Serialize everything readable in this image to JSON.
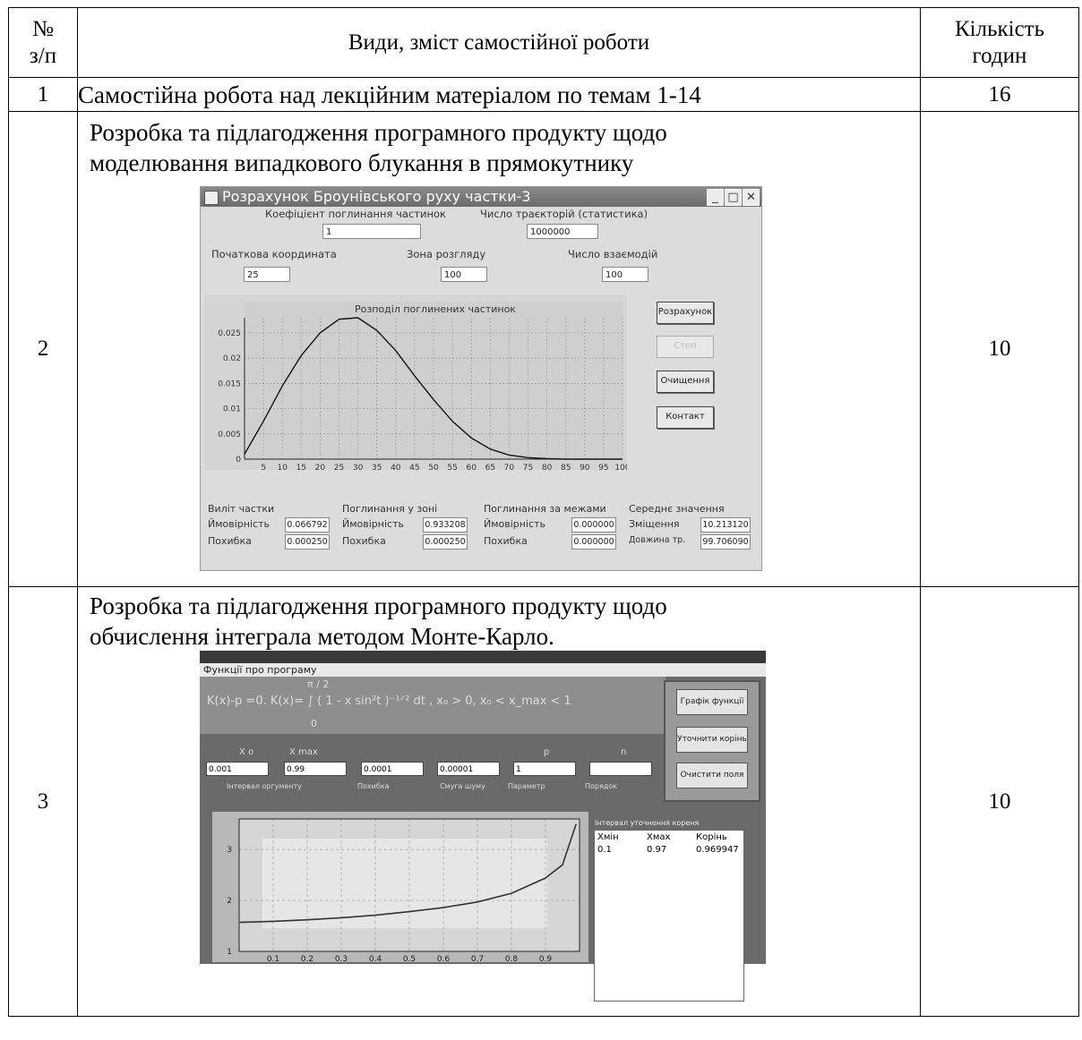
{
  "header": {
    "num_line1": "№",
    "num_line2": "з/п",
    "title": "Види, зміст самостійної роботи",
    "hours_line1": "Кількість",
    "hours_line2": "годин"
  },
  "rows": [
    {
      "num": "1",
      "text": "Самостійна робота над лекційним матеріалом по темам 1-14",
      "hours": "16"
    },
    {
      "num": "2",
      "text_line1": "Розробка та підлагодження програмного продукту щодо",
      "text_line2": "моделювання випадкового блукання в прямокутнику",
      "hours": "10"
    },
    {
      "num": "3",
      "text_line1": "Розробка та підлагодження програмного продукту щодо",
      "text_line2": "обчислення інтеграла методом Монте-Карло.",
      "hours": "10"
    }
  ],
  "screenshot1": {
    "title": "Розрахунок Броунівського руху частки-3",
    "lbl_absorb": "Коефіцієнт поглинання частинок",
    "val_absorb": "1",
    "lbl_traj": "Число траєкторій (статистика)",
    "val_traj": "1000000",
    "lbl_start": "Початкова координата",
    "val_start": "25",
    "lbl_zone": "Зона розгляду",
    "val_zone": "100",
    "lbl_inter": "Число взаємодій",
    "val_inter": "100",
    "btn_calc": "Розрахунок",
    "btn_stop": "Стоп",
    "btn_clear": "Очищення",
    "btn_contact": "Контакт",
    "chart_title": "Розподіл поглинених частинок",
    "g1_title": "Виліт частки",
    "g1_prob_lbl": "Ймовірність",
    "g1_prob": "0.066792",
    "g1_err_lbl": "Похибка",
    "g1_err": "0.000250",
    "g2_title": "Поглинання у зоні",
    "g2_prob_lbl": "Ймовірність",
    "g2_prob": "0.933208",
    "g2_err_lbl": "Похибка",
    "g2_err": "0.000250",
    "g3_title": "Поглинання за межами",
    "g3_prob_lbl": "Ймовірність",
    "g3_prob": "0.000000",
    "g3_err_lbl": "Похибка",
    "g3_err": "0.000000",
    "g4_title": "Середнє значення",
    "g4_shift_lbl": "Зміщення",
    "g4_shift": "10.213120",
    "g4_len_lbl": "Довжина тр.",
    "g4_len": "99.706090"
  },
  "screenshot2": {
    "menu": "Функції про програму",
    "formula": "K(x)-p =0.   K(x)= ∫ ( 1 - x sin²t )⁻¹ᐟ² dt ,  x₀ > 0,   x₀ < x_max < 1",
    "formula_upper": "π / 2",
    "formula_lower": "0",
    "lbl_x0": "X o",
    "lbl_xmax": "X max",
    "lbl_p": "p",
    "lbl_n": "n",
    "val_x0": "0.001",
    "val_xmax": "0.99",
    "val_err": "0.0001",
    "val_noise": "0.00001",
    "val_p": "1",
    "val_n": "",
    "cap_interval": "Інтервал оргументу",
    "cap_err": "Похибка",
    "cap_noise": "Смуга шуму",
    "cap_param": "Параметр",
    "cap_order": "Порядок",
    "btn_graph": "Графік функції",
    "btn_refine": "Уточнити корінь",
    "btn_clear": "Очистити поля",
    "table_title": "Інтервал уточнення кореня",
    "col_min": "Хмін",
    "col_max": "Хмах",
    "col_root": "Корінь",
    "row_min": "0.1",
    "row_max": "0.97",
    "row_root": "0.969947"
  },
  "chart_data": [
    {
      "type": "line",
      "title": "Розподіл поглинених частинок",
      "x": [
        0,
        5,
        10,
        15,
        20,
        25,
        30,
        35,
        40,
        45,
        50,
        55,
        60,
        65,
        70,
        75,
        80,
        85,
        90,
        95,
        100
      ],
      "y": [
        0.001,
        0.0075,
        0.0145,
        0.0205,
        0.025,
        0.0277,
        0.028,
        0.0255,
        0.0215,
        0.0165,
        0.0118,
        0.0075,
        0.0042,
        0.002,
        0.0008,
        0.0003,
        0.0001,
        0,
        0,
        0,
        0
      ],
      "xlim": [
        0,
        100
      ],
      "ylim": [
        0,
        0.028
      ],
      "xticks": [
        "5",
        "10",
        "15",
        "20",
        "25",
        "30",
        "35",
        "40",
        "45",
        "50",
        "55",
        "60",
        "65",
        "70",
        "75",
        "80",
        "85",
        "90",
        "95",
        "100"
      ],
      "yticks": [
        "0",
        "0.005",
        "0.01",
        "0.015",
        "0.02",
        "0.025"
      ],
      "grid": true
    },
    {
      "type": "line",
      "x": [
        0.0,
        0.1,
        0.2,
        0.3,
        0.4,
        0.5,
        0.6,
        0.7,
        0.8,
        0.9,
        0.95,
        0.99
      ],
      "y": [
        1.57,
        1.59,
        1.62,
        1.66,
        1.71,
        1.78,
        1.86,
        1.97,
        2.14,
        2.44,
        2.7,
        3.5
      ],
      "xlim": [
        0,
        1
      ],
      "ylim": [
        1,
        3.6
      ],
      "xticks": [
        "0.1",
        "0.2",
        "0.3",
        "0.4",
        "0.5",
        "0.6",
        "0.7",
        "0.8",
        "0.9"
      ],
      "yticks": [
        "1",
        "2",
        "3"
      ],
      "grid": true
    }
  ]
}
